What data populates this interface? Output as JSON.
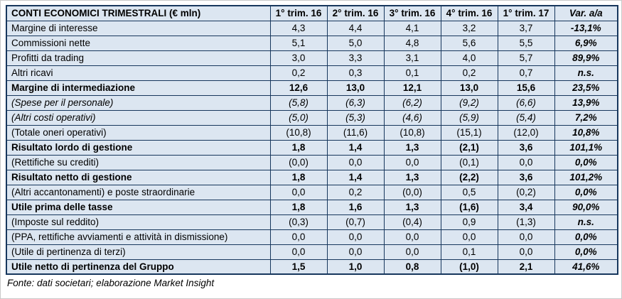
{
  "table": {
    "title": "CONTI ECONOMICI TRIMESTRALI (€ mln)",
    "columns": [
      "1° trim. 16",
      "2° trim. 16",
      "3° trim. 16",
      "4° trim. 16",
      "1° trim. 17",
      "Var. a/a"
    ],
    "rows": [
      {
        "label": "Margine di interesse",
        "values": [
          "4,3",
          "4,4",
          "4,1",
          "3,2",
          "3,7"
        ],
        "var": "-13,1%",
        "style": "normal"
      },
      {
        "label": "Commissioni nette",
        "values": [
          "5,1",
          "5,0",
          "4,8",
          "5,6",
          "5,5"
        ],
        "var": "6,9%",
        "style": "normal"
      },
      {
        "label": "Profitti da trading",
        "values": [
          "3,0",
          "3,3",
          "3,1",
          "4,0",
          "5,7"
        ],
        "var": "89,9%",
        "style": "normal"
      },
      {
        "label": "Altri ricavi",
        "values": [
          "0,2",
          "0,3",
          "0,1",
          "0,2",
          "0,7"
        ],
        "var": "n.s.",
        "style": "normal"
      },
      {
        "label": "Margine di intermediazione",
        "values": [
          "12,6",
          "13,0",
          "12,1",
          "13,0",
          "15,6"
        ],
        "var": "23,5%",
        "style": "bold"
      },
      {
        "label": "(Spese per il personale)",
        "values": [
          "(5,8)",
          "(6,3)",
          "(6,2)",
          "(9,2)",
          "(6,6)"
        ],
        "var": "13,9%",
        "style": "italic"
      },
      {
        "label": "(Altri costi operativi)",
        "values": [
          "(5,0)",
          "(5,3)",
          "(4,6)",
          "(5,9)",
          "(5,4)"
        ],
        "var": "7,2%",
        "style": "italic"
      },
      {
        "label": "(Totale oneri operativi)",
        "values": [
          "(10,8)",
          "(11,6)",
          "(10,8)",
          "(15,1)",
          "(12,0)"
        ],
        "var": "10,8%",
        "style": "normal"
      },
      {
        "label": "Risultato lordo di gestione",
        "values": [
          "1,8",
          "1,4",
          "1,3",
          "(2,1)",
          "3,6"
        ],
        "var": "101,1%",
        "style": "bold"
      },
      {
        "label": "(Rettifiche su crediti)",
        "values": [
          "(0,0)",
          "0,0",
          "0,0",
          "(0,1)",
          "0,0"
        ],
        "var": "0,0%",
        "style": "normal"
      },
      {
        "label": "Risultato netto di gestione",
        "values": [
          "1,8",
          "1,4",
          "1,3",
          "(2,2)",
          "3,6"
        ],
        "var": "101,2%",
        "style": "bold"
      },
      {
        "label": "(Altri accantonamenti) e poste straordinarie",
        "values": [
          "0,0",
          "0,2",
          "(0,0)",
          "0,5",
          "(0,2)"
        ],
        "var": "0,0%",
        "style": "normal"
      },
      {
        "label": "Utile prima delle tasse",
        "values": [
          "1,8",
          "1,6",
          "1,3",
          "(1,6)",
          "3,4"
        ],
        "var": "90,0%",
        "style": "bold"
      },
      {
        "label": "(Imposte sul reddito)",
        "values": [
          "(0,3)",
          "(0,7)",
          "(0,4)",
          "0,9",
          "(1,3)"
        ],
        "var": "n.s.",
        "style": "normal"
      },
      {
        "label": "(PPA, rettifiche avviamenti e attività in dismissione)",
        "values": [
          "0,0",
          "0,0",
          "0,0",
          "0,0",
          "0,0"
        ],
        "var": "0,0%",
        "style": "normal"
      },
      {
        "label": "(Utile di pertinenza di terzi)",
        "values": [
          "0,0",
          "0,0",
          "0,0",
          "0,1",
          "0,0"
        ],
        "var": "0,0%",
        "style": "normal"
      },
      {
        "label": "Utile netto di pertinenza del Gruppo",
        "values": [
          "1,5",
          "1,0",
          "0,8",
          "(1,0)",
          "2,1"
        ],
        "var": "41,6%",
        "style": "bold"
      }
    ]
  },
  "footer": "Fonte: dati societari; elaborazione Market Insight",
  "colors": {
    "cell_background": "#DCE6F1",
    "border": "#17375D",
    "text": "#000000"
  }
}
